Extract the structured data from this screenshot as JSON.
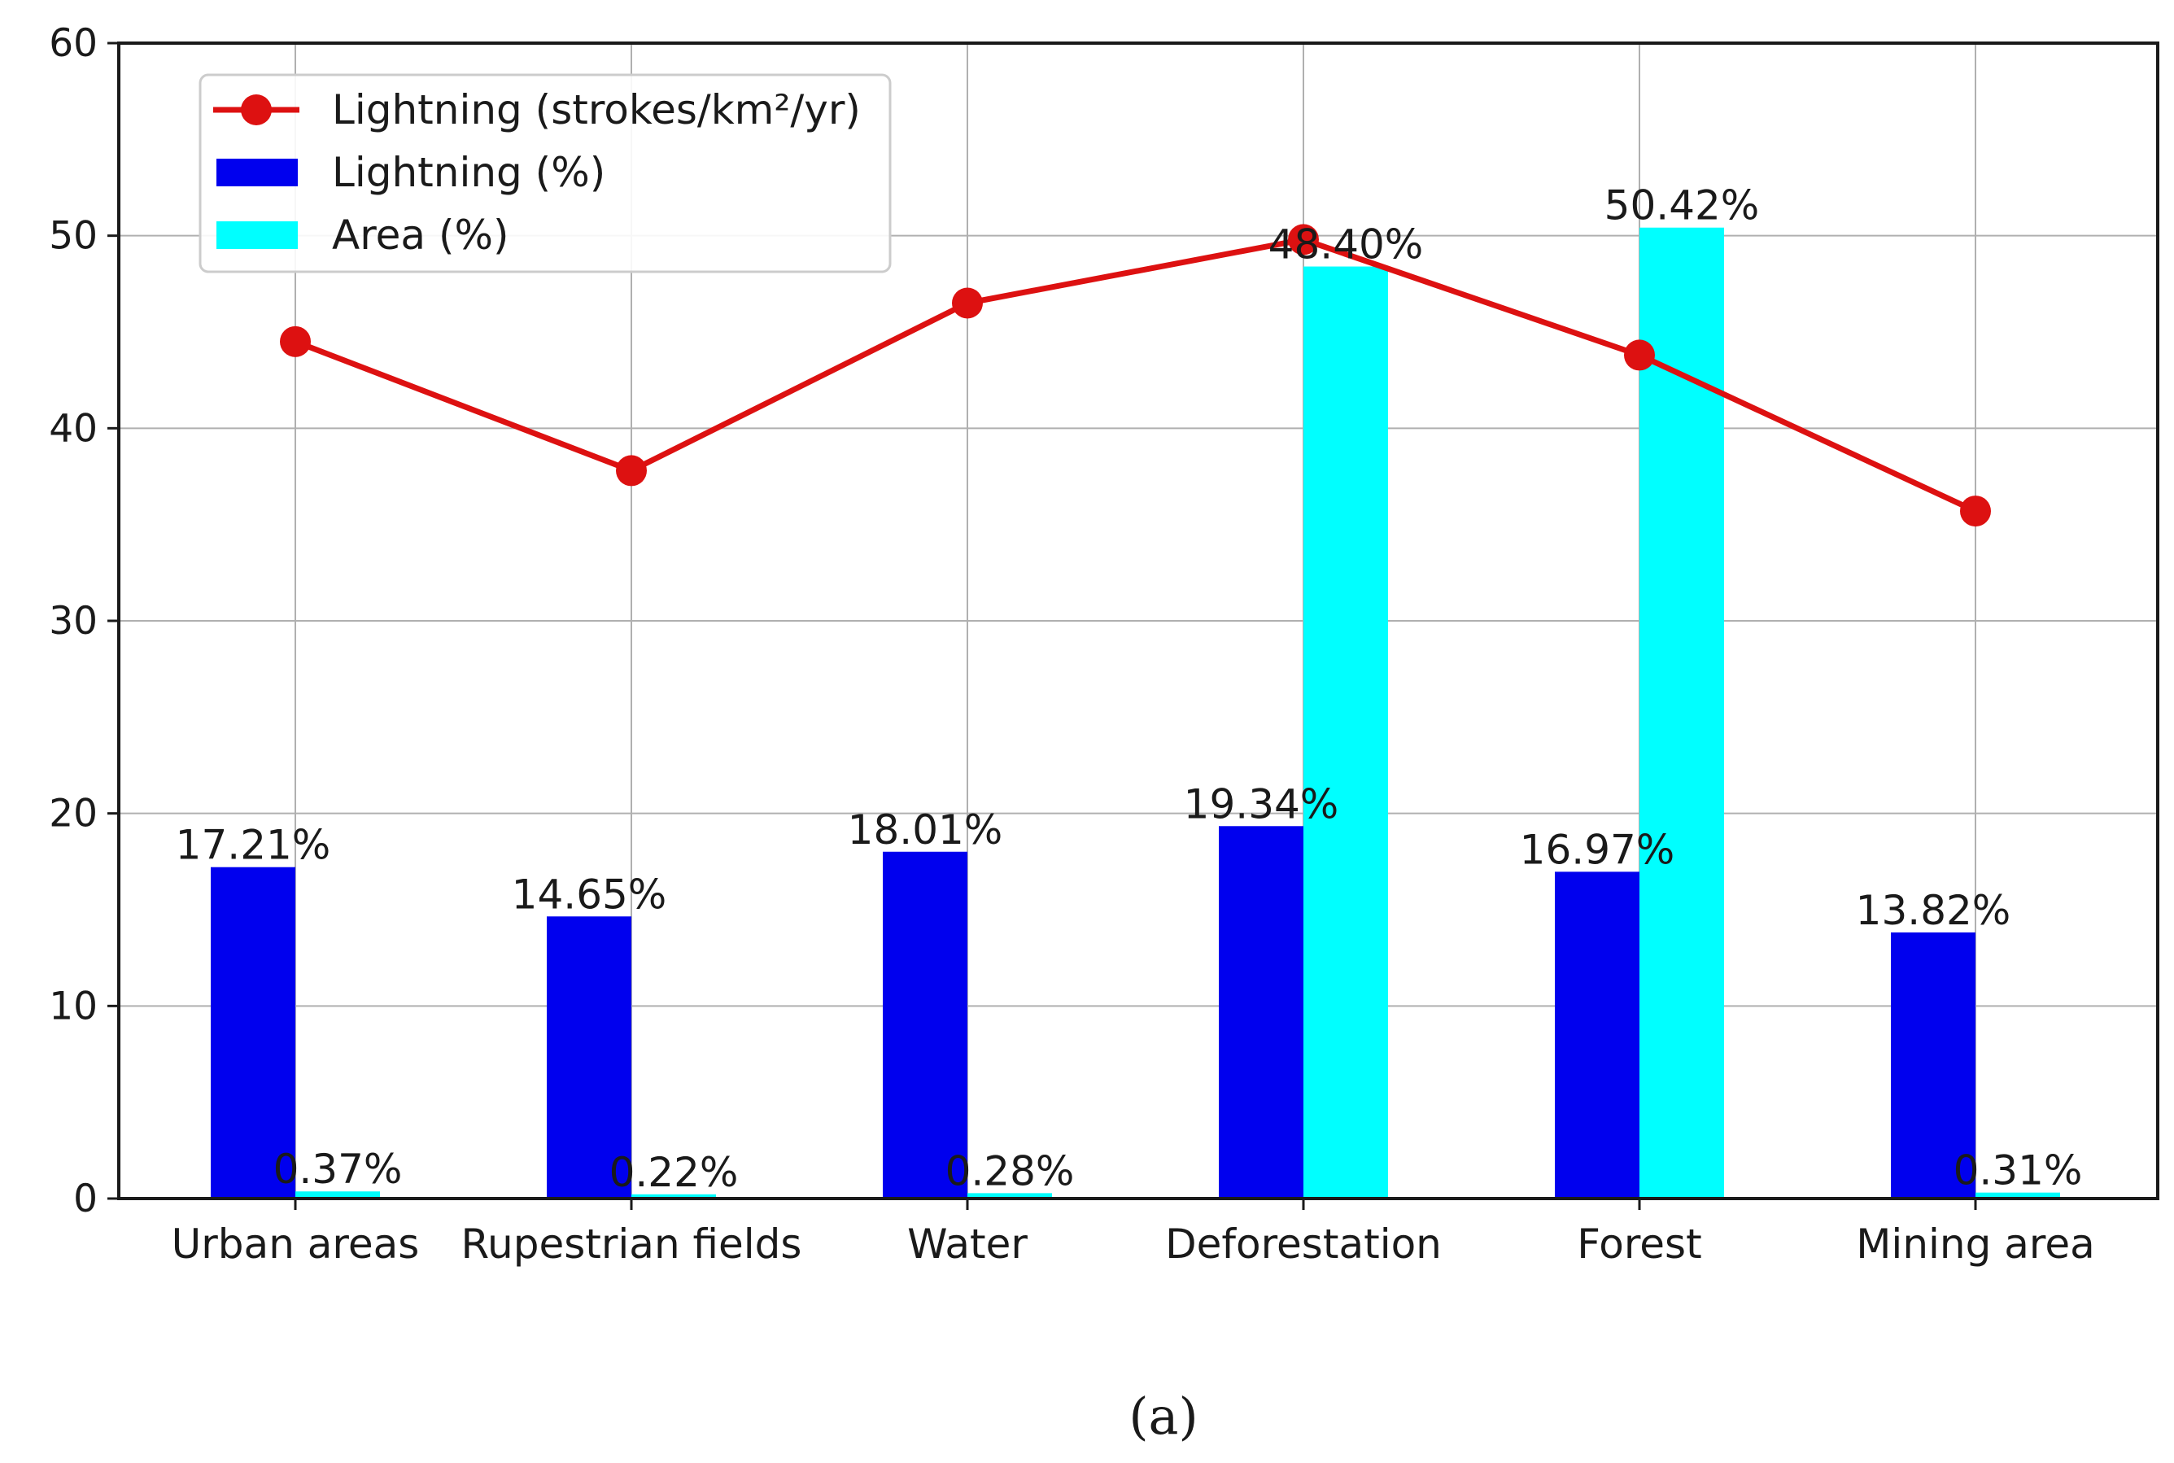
{
  "chart_data": {
    "type": "bar",
    "categories": [
      "Urban areas",
      "Rupestrian fields",
      "Water",
      "Deforestation",
      "Forest",
      "Mining area"
    ],
    "series": [
      {
        "name": "Lightning (%)",
        "kind": "bar",
        "color": "#0000ee",
        "values": [
          17.21,
          14.65,
          18.01,
          19.34,
          16.97,
          13.82
        ],
        "labels": [
          "17.21%",
          "14.65%",
          "18.01%",
          "19.34%",
          "16.97%",
          "13.82%"
        ]
      },
      {
        "name": "Area (%)",
        "kind": "bar",
        "color": "#00ffff",
        "values": [
          0.37,
          0.22,
          0.28,
          48.4,
          50.42,
          0.31
        ],
        "labels": [
          "0.37%",
          "0.22%",
          "0.28%",
          "48.40%",
          "50.42%",
          "0.31%"
        ]
      },
      {
        "name": "Lightning (strokes/km²/yr)",
        "kind": "line",
        "color": "#dd1111",
        "values": [
          44.5,
          37.8,
          46.5,
          49.8,
          43.8,
          35.7
        ]
      }
    ],
    "title": "",
    "xlabel": "",
    "ylabel": "",
    "ylim": [
      0,
      60
    ],
    "yticks": [
      0,
      10,
      20,
      30,
      40,
      50,
      60
    ],
    "grid": true,
    "legend_position": "top-left"
  },
  "caption": "(a)"
}
